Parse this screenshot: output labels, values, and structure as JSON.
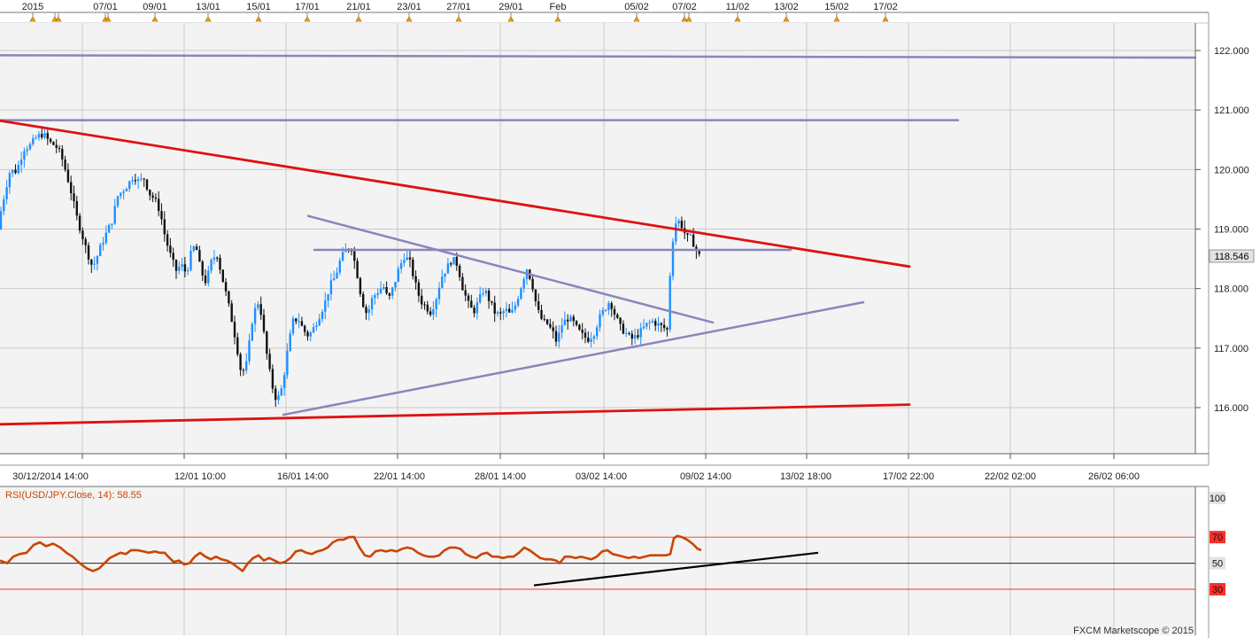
{
  "chart_data": [
    {
      "type": "candlestick",
      "title": "",
      "instrument": "USD/JPY",
      "event_axis_labels": [
        "2015",
        "07/01",
        "09/01",
        "13/01",
        "15/01",
        "17/01",
        "21/01",
        "23/01",
        "27/01",
        "29/01",
        "Feb",
        "05/02",
        "07/02",
        "11/02",
        "13/02",
        "15/02",
        "17/02"
      ],
      "x_tick_labels": [
        "30/12/2014 14:00",
        "12/01 10:00",
        "16/01 14:00",
        "22/01 14:00",
        "28/01 14:00",
        "03/02 14:00",
        "09/02 14:00",
        "13/02 18:00",
        "17/02 22:00",
        "22/02 02:00",
        "26/02 06:00"
      ],
      "y_tick_labels": [
        "116.000",
        "117.000",
        "118.000",
        "119.000",
        "120.000",
        "121.000",
        "122.000"
      ],
      "ylim": [
        115.25,
        122.25
      ],
      "last_price": "118.546",
      "price_path": [
        [
          0,
          119.0
        ],
        [
          5,
          119.35
        ],
        [
          10,
          119.7
        ],
        [
          15,
          120.0
        ],
        [
          20,
          119.95
        ],
        [
          25,
          120.1
        ],
        [
          30,
          120.35
        ],
        [
          37,
          120.4
        ],
        [
          45,
          120.55
        ],
        [
          52,
          120.6
        ],
        [
          60,
          120.45
        ],
        [
          66,
          120.4
        ],
        [
          72,
          120.25
        ],
        [
          78,
          119.95
        ],
        [
          84,
          119.6
        ],
        [
          90,
          119.2
        ],
        [
          96,
          118.9
        ],
        [
          102,
          118.6
        ],
        [
          108,
          118.35
        ],
        [
          112,
          118.5
        ],
        [
          118,
          118.75
        ],
        [
          124,
          118.95
        ],
        [
          130,
          119.15
        ],
        [
          136,
          119.55
        ],
        [
          142,
          119.65
        ],
        [
          148,
          119.75
        ],
        [
          154,
          119.9
        ],
        [
          160,
          119.8
        ],
        [
          166,
          119.85
        ],
        [
          172,
          119.6
        ],
        [
          178,
          119.5
        ],
        [
          184,
          119.3
        ],
        [
          190,
          118.85
        ],
        [
          196,
          118.55
        ],
        [
          202,
          118.3
        ],
        [
          208,
          118.4
        ],
        [
          214,
          118.25
        ],
        [
          218,
          118.55
        ],
        [
          224,
          118.75
        ],
        [
          230,
          118.3
        ],
        [
          236,
          118.1
        ],
        [
          242,
          118.45
        ],
        [
          248,
          118.6
        ],
        [
          254,
          118.2
        ],
        [
          258,
          117.95
        ],
        [
          264,
          117.55
        ],
        [
          270,
          117.1
        ],
        [
          276,
          116.55
        ],
        [
          282,
          116.75
        ],
        [
          288,
          117.45
        ],
        [
          294,
          117.8
        ],
        [
          298,
          117.6
        ],
        [
          304,
          116.95
        ],
        [
          310,
          116.4
        ],
        [
          316,
          116.1
        ],
        [
          322,
          116.35
        ],
        [
          328,
          116.95
        ],
        [
          334,
          117.45
        ],
        [
          340,
          117.5
        ],
        [
          346,
          117.3
        ],
        [
          352,
          117.2
        ],
        [
          358,
          117.35
        ],
        [
          364,
          117.55
        ],
        [
          370,
          117.75
        ],
        [
          376,
          118.05
        ],
        [
          382,
          118.2
        ],
        [
          388,
          118.5
        ],
        [
          394,
          118.65
        ],
        [
          400,
          118.7
        ],
        [
          406,
          118.3
        ],
        [
          412,
          117.8
        ],
        [
          418,
          117.55
        ],
        [
          424,
          117.85
        ],
        [
          430,
          117.95
        ],
        [
          436,
          118.05
        ],
        [
          442,
          117.8
        ],
        [
          448,
          118.05
        ],
        [
          454,
          118.35
        ],
        [
          460,
          118.55
        ],
        [
          466,
          118.45
        ],
        [
          472,
          118.1
        ],
        [
          478,
          117.8
        ],
        [
          484,
          117.7
        ],
        [
          490,
          117.6
        ],
        [
          496,
          117.85
        ],
        [
          502,
          118.2
        ],
        [
          508,
          118.35
        ],
        [
          514,
          118.5
        ],
        [
          520,
          118.4
        ],
        [
          526,
          118.0
        ],
        [
          532,
          117.75
        ],
        [
          538,
          117.6
        ],
        [
          544,
          117.8
        ],
        [
          550,
          118.0
        ],
        [
          556,
          117.8
        ],
        [
          562,
          117.6
        ],
        [
          568,
          117.55
        ],
        [
          574,
          117.65
        ],
        [
          580,
          117.55
        ],
        [
          586,
          117.75
        ],
        [
          592,
          118.05
        ],
        [
          598,
          118.35
        ],
        [
          604,
          118.1
        ],
        [
          610,
          117.65
        ],
        [
          616,
          117.45
        ],
        [
          622,
          117.4
        ],
        [
          628,
          117.25
        ],
        [
          632,
          117.1
        ],
        [
          638,
          117.4
        ],
        [
          644,
          117.5
        ],
        [
          650,
          117.45
        ],
        [
          656,
          117.3
        ],
        [
          662,
          117.2
        ],
        [
          668,
          117.15
        ],
        [
          674,
          117.25
        ],
        [
          680,
          117.5
        ],
        [
          686,
          117.65
        ],
        [
          692,
          117.8
        ],
        [
          698,
          117.55
        ],
        [
          704,
          117.35
        ],
        [
          710,
          117.25
        ],
        [
          716,
          117.15
        ],
        [
          722,
          117.2
        ],
        [
          728,
          117.3
        ],
        [
          734,
          117.4
        ],
        [
          740,
          117.45
        ],
        [
          746,
          117.4
        ],
        [
          752,
          117.35
        ],
        [
          757,
          117.3
        ],
        [
          761,
          118.55
        ],
        [
          765,
          119.05
        ],
        [
          768,
          119.15
        ],
        [
          772,
          119.1
        ],
        [
          776,
          118.95
        ],
        [
          780,
          118.85
        ],
        [
          784,
          118.85
        ],
        [
          788,
          118.7
        ],
        [
          792,
          118.55
        ]
      ],
      "annotations": {
        "red_channel_upper": [
          [
            0,
            120.82
          ],
          [
            1027,
            118.37
          ]
        ],
        "red_channel_lower": [
          [
            0,
            115.72
          ],
          [
            1027,
            116.05
          ]
        ],
        "triangle_upper": [
          [
            348,
            119.22
          ],
          [
            805,
            117.43
          ]
        ],
        "triangle_lower": [
          [
            320,
            115.88
          ],
          [
            975,
            117.77
          ]
        ],
        "horizontal_118_65": [
          [
            355,
            118.65
          ],
          [
            893,
            118.65
          ]
        ],
        "horizontal_120_83": [
          [
            0,
            120.83
          ],
          [
            1082,
            120.83
          ]
        ],
        "horizontal_121_90": [
          [
            0,
            121.92
          ],
          [
            1350,
            121.88
          ]
        ]
      }
    },
    {
      "type": "line",
      "title": "RSI(USD/JPY.Close, 14): 58.55",
      "ylim": [
        0,
        100
      ],
      "y_tick_labels": [
        "100",
        "70",
        "50",
        "30"
      ],
      "reference_levels": [
        70,
        50,
        30
      ],
      "colors": {
        "rsi": "#cc4400",
        "overbought": "#ff2d2d",
        "oversold": "#ff2d2d",
        "trend": "#000000"
      },
      "values_path": [
        [
          0,
          52
        ],
        [
          8,
          50
        ],
        [
          15,
          55
        ],
        [
          22,
          57
        ],
        [
          30,
          58
        ],
        [
          38,
          64
        ],
        [
          45,
          66
        ],
        [
          52,
          63
        ],
        [
          60,
          65
        ],
        [
          68,
          62
        ],
        [
          75,
          58
        ],
        [
          82,
          55
        ],
        [
          90,
          50
        ],
        [
          98,
          46
        ],
        [
          105,
          44
        ],
        [
          112,
          46
        ],
        [
          118,
          50
        ],
        [
          124,
          54
        ],
        [
          130,
          56
        ],
        [
          136,
          58
        ],
        [
          142,
          57
        ],
        [
          148,
          60
        ],
        [
          155,
          60
        ],
        [
          162,
          59
        ],
        [
          168,
          58
        ],
        [
          175,
          59
        ],
        [
          180,
          58
        ],
        [
          186,
          58
        ],
        [
          190,
          55
        ],
        [
          196,
          51
        ],
        [
          202,
          52
        ],
        [
          208,
          49
        ],
        [
          214,
          50
        ],
        [
          220,
          55
        ],
        [
          226,
          58
        ],
        [
          232,
          55
        ],
        [
          238,
          53
        ],
        [
          244,
          55
        ],
        [
          250,
          53
        ],
        [
          256,
          52
        ],
        [
          262,
          50
        ],
        [
          268,
          47
        ],
        [
          274,
          44
        ],
        [
          280,
          50
        ],
        [
          286,
          54
        ],
        [
          292,
          56
        ],
        [
          298,
          52
        ],
        [
          304,
          54
        ],
        [
          310,
          52
        ],
        [
          316,
          50
        ],
        [
          322,
          51
        ],
        [
          328,
          54
        ],
        [
          334,
          59
        ],
        [
          340,
          60
        ],
        [
          346,
          58
        ],
        [
          352,
          57
        ],
        [
          358,
          59
        ],
        [
          364,
          60
        ],
        [
          370,
          62
        ],
        [
          376,
          66
        ],
        [
          382,
          68
        ],
        [
          388,
          68
        ],
        [
          394,
          70
        ],
        [
          400,
          70
        ],
        [
          406,
          62
        ],
        [
          412,
          56
        ],
        [
          418,
          55
        ],
        [
          424,
          59
        ],
        [
          430,
          60
        ],
        [
          436,
          59
        ],
        [
          442,
          60
        ],
        [
          448,
          59
        ],
        [
          454,
          61
        ],
        [
          460,
          62
        ],
        [
          466,
          61
        ],
        [
          472,
          58
        ],
        [
          478,
          56
        ],
        [
          484,
          55
        ],
        [
          490,
          55
        ],
        [
          496,
          56
        ],
        [
          502,
          60
        ],
        [
          508,
          62
        ],
        [
          514,
          62
        ],
        [
          520,
          61
        ],
        [
          526,
          57
        ],
        [
          532,
          55
        ],
        [
          538,
          54
        ],
        [
          544,
          57
        ],
        [
          550,
          58
        ],
        [
          556,
          55
        ],
        [
          562,
          55
        ],
        [
          568,
          54
        ],
        [
          574,
          55
        ],
        [
          580,
          55
        ],
        [
          586,
          58
        ],
        [
          592,
          62
        ],
        [
          598,
          60
        ],
        [
          604,
          57
        ],
        [
          610,
          54
        ],
        [
          616,
          53
        ],
        [
          622,
          53
        ],
        [
          628,
          52
        ],
        [
          632,
          50
        ],
        [
          638,
          55
        ],
        [
          644,
          55
        ],
        [
          650,
          54
        ],
        [
          656,
          55
        ],
        [
          662,
          54
        ],
        [
          668,
          53
        ],
        [
          674,
          55
        ],
        [
          680,
          59
        ],
        [
          686,
          60
        ],
        [
          692,
          57
        ],
        [
          698,
          56
        ],
        [
          704,
          55
        ],
        [
          710,
          54
        ],
        [
          716,
          55
        ],
        [
          722,
          54
        ],
        [
          728,
          55
        ],
        [
          734,
          56
        ],
        [
          740,
          56
        ],
        [
          746,
          56
        ],
        [
          752,
          56
        ],
        [
          757,
          57
        ],
        [
          761,
          69
        ],
        [
          765,
          71
        ],
        [
          770,
          70
        ],
        [
          776,
          68
        ],
        [
          782,
          65
        ],
        [
          788,
          61
        ],
        [
          792,
          60
        ]
      ],
      "trend_line": [
        [
          603,
          33
        ],
        [
          924,
          58
        ]
      ],
      "credit": "FXCM Marketscope © 2015"
    }
  ]
}
